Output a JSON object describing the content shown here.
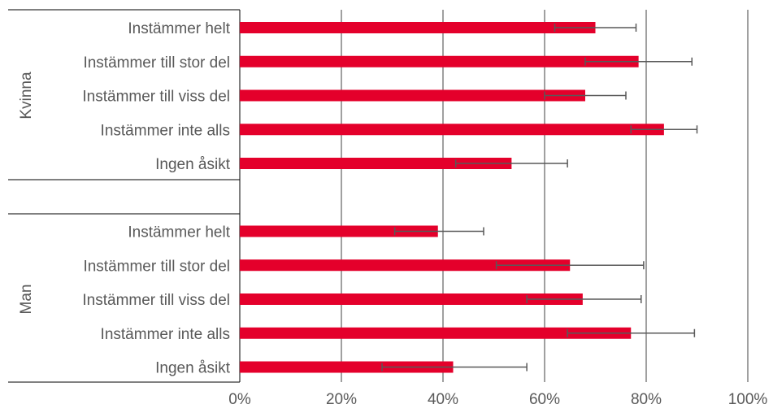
{
  "chart_data": {
    "type": "bar",
    "orientation": "horizontal",
    "bar_color": "#e4002b",
    "error_bar_color": "#595959",
    "grid": true,
    "xlim": [
      0,
      100
    ],
    "x_ticks": [
      "0%",
      "20%",
      "40%",
      "60%",
      "80%",
      "100%"
    ],
    "groups": [
      {
        "name": "Kvinna",
        "categories": [
          "Instämmer helt",
          "Instämmer till stor del",
          "Instämmer till viss del",
          "Instämmer inte alls",
          "Ingen åsikt"
        ],
        "values": [
          70,
          78.5,
          68,
          83.5,
          53.5
        ],
        "error_low": [
          62,
          68,
          60,
          77,
          42.5
        ],
        "error_high": [
          78,
          89,
          76,
          90,
          64.5
        ]
      },
      {
        "name": "Man",
        "categories": [
          "Instämmer helt",
          "Instämmer till stor del",
          "Instämmer till viss del",
          "Instämmer inte alls",
          "Ingen åsikt"
        ],
        "values": [
          39,
          65,
          67.5,
          77,
          42
        ],
        "error_low": [
          30.5,
          50.5,
          56.5,
          64.5,
          28
        ],
        "error_high": [
          48,
          79.5,
          79,
          89.5,
          56.5
        ]
      }
    ]
  }
}
